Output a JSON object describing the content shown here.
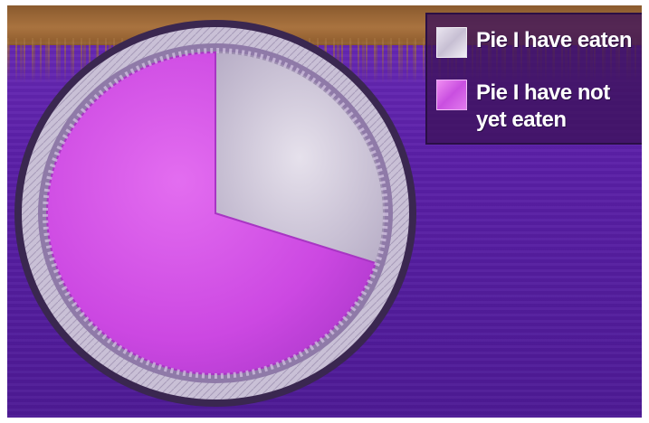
{
  "chart_data": {
    "type": "pie",
    "title": "",
    "slices": [
      {
        "label": "Pie I have eaten",
        "value": 30,
        "color": "#d9d2e0"
      },
      {
        "label": "Pie I have not yet eaten",
        "value": 70,
        "color": "#d455e8"
      }
    ],
    "legend": {
      "placement": "top-right",
      "entries": [
        "Pie I have eaten",
        "Pie I have not yet eaten"
      ]
    }
  },
  "colors": {
    "background": "#5a1fa6",
    "eaten": "#d9d2e0",
    "not_eaten": "#d455e8",
    "pan": "#b9aec8"
  }
}
